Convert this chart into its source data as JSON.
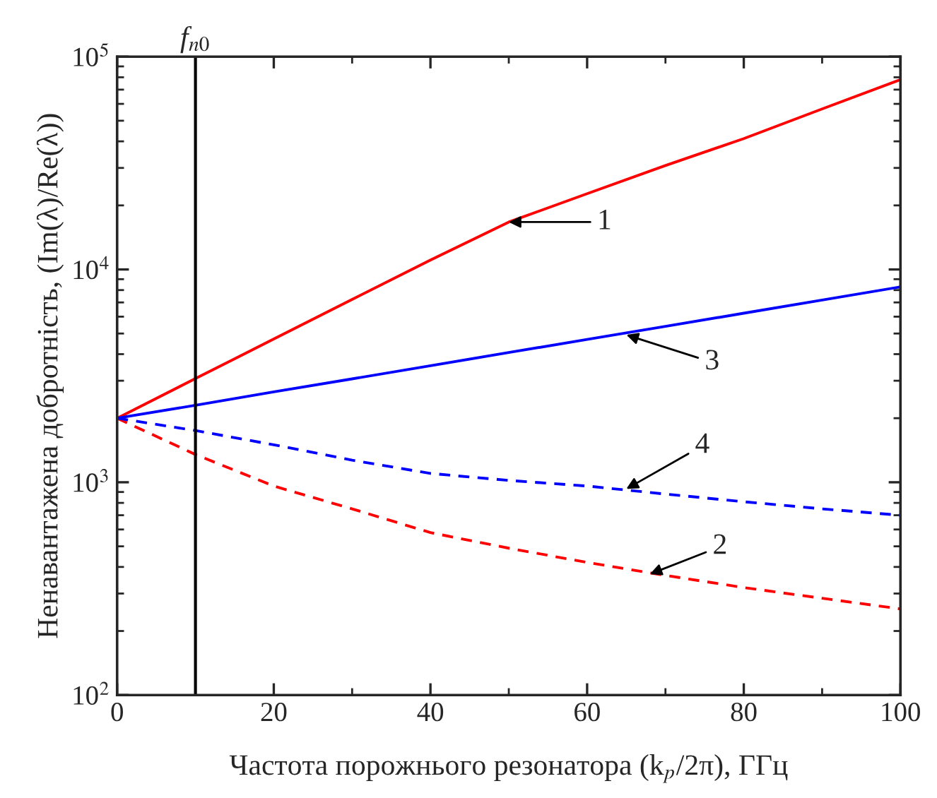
{
  "chart_data": {
    "type": "line",
    "xlabel": "Частота порожнього резонатора (k$_{p}$/2π), ГГц",
    "ylabel": "Ненавантажена добротність, (Im(λ)/Re(λ))",
    "x": [
      0,
      10,
      20,
      30,
      40,
      50,
      60,
      70,
      80,
      90,
      100
    ],
    "series": [
      {
        "color": "#ff0000",
        "line_style": "solid",
        "values": [
          2000,
          3070,
          4710,
          7230,
          11070,
          16700,
          22700,
          30800,
          41200,
          56800,
          78000
        ]
      },
      {
        "color": "#ff0000",
        "line_style": "dashed",
        "values": [
          2000,
          1350,
          960,
          750,
          580,
          490,
          420,
          365,
          320,
          285,
          254
        ]
      },
      {
        "color": "#0000ff",
        "line_style": "solid",
        "values": [
          2000,
          2300,
          2660,
          3060,
          3530,
          4070,
          4690,
          5400,
          6230,
          7180,
          8280
        ]
      },
      {
        "color": "#0000ff",
        "line_style": "dashed",
        "values": [
          2000,
          1750,
          1500,
          1270,
          1100,
          1020,
          960,
          880,
          810,
          750,
          700
        ]
      }
    ],
    "log": "y",
    "xlim": [
      0,
      100
    ],
    "xticks": [
      0,
      20,
      40,
      60,
      80,
      100
    ],
    "ylim": [
      100,
      100000
    ],
    "yticks": [
      {
        "value": 100,
        "label": "10$^{2}$"
      },
      {
        "value": 1000,
        "label": "10$^{3}$"
      },
      {
        "value": 10000,
        "label": "10$^{4}$"
      },
      {
        "value": 100000,
        "label": "10$^{5}$"
      }
    ],
    "ref_lines": [
      {
        "axis": "x",
        "value": 10,
        "label": "f$_{n0}$",
        "color": "#000000"
      }
    ],
    "annotations": [
      {
        "text": "1",
        "x": 50,
        "y": 16700
      },
      {
        "text": "3",
        "x": 65,
        "y": 4930
      },
      {
        "text": "4",
        "x": 65,
        "y": 930
      },
      {
        "text": "2",
        "x": 68,
        "y": 370
      }
    ],
    "grid": false
  }
}
